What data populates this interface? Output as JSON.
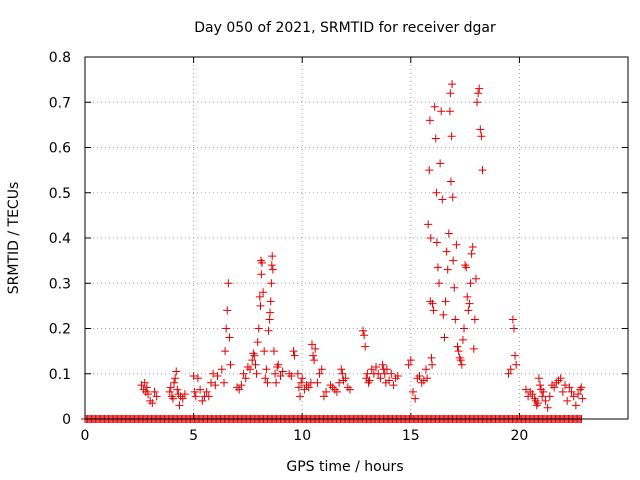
{
  "chart_data": {
    "type": "scatter",
    "title": "Day 050 of 2021, SRMTID for receiver dgar",
    "xlabel": "GPS time / hours",
    "ylabel": "SRMTID / TECUs",
    "xlim": [
      0,
      25
    ],
    "ylim": [
      0,
      0.8
    ],
    "grid": true,
    "xticks": [
      0,
      5,
      10,
      15,
      20
    ],
    "xtick_labels": [
      "0",
      "5",
      "10",
      "15",
      "20"
    ],
    "yticks": [
      0,
      0.1,
      0.2,
      0.3,
      0.4,
      0.5,
      0.6,
      0.7,
      0.8
    ],
    "ytick_labels": [
      "0",
      "0.1",
      "0.2",
      "0.3",
      "0.4",
      "0.5",
      "0.6",
      "0.7",
      "0.8"
    ],
    "marker": "+",
    "series": [
      {
        "name": "dgar",
        "color": "#e00000",
        "points": [
          [
            2.6,
            0.075
          ],
          [
            2.7,
            0.065
          ],
          [
            2.75,
            0.08
          ],
          [
            2.8,
            0.06
          ],
          [
            2.85,
            0.07
          ],
          [
            2.9,
            0.055
          ],
          [
            3.0,
            0.04
          ],
          [
            3.1,
            0.035
          ],
          [
            3.2,
            0.06
          ],
          [
            3.3,
            0.05
          ],
          [
            3.9,
            0.06
          ],
          [
            3.95,
            0.07
          ],
          [
            4.0,
            0.05
          ],
          [
            4.05,
            0.045
          ],
          [
            4.1,
            0.08
          ],
          [
            4.15,
            0.09
          ],
          [
            4.2,
            0.105
          ],
          [
            4.25,
            0.065
          ],
          [
            4.3,
            0.055
          ],
          [
            4.35,
            0.03
          ],
          [
            4.4,
            0.05
          ],
          [
            4.5,
            0.045
          ],
          [
            4.6,
            0.055
          ],
          [
            5.0,
            0.095
          ],
          [
            5.05,
            0.06
          ],
          [
            5.1,
            0.05
          ],
          [
            5.2,
            0.09
          ],
          [
            5.3,
            0.065
          ],
          [
            5.4,
            0.04
          ],
          [
            5.5,
            0.05
          ],
          [
            5.6,
            0.06
          ],
          [
            5.7,
            0.05
          ],
          [
            5.8,
            0.08
          ],
          [
            5.9,
            0.1
          ],
          [
            6.0,
            0.075
          ],
          [
            6.1,
            0.095
          ],
          [
            6.3,
            0.11
          ],
          [
            6.4,
            0.08
          ],
          [
            6.45,
            0.15
          ],
          [
            6.5,
            0.2
          ],
          [
            6.55,
            0.24
          ],
          [
            6.6,
            0.3
          ],
          [
            6.65,
            0.18
          ],
          [
            6.7,
            0.12
          ],
          [
            7.0,
            0.07
          ],
          [
            7.1,
            0.065
          ],
          [
            7.2,
            0.075
          ],
          [
            7.3,
            0.1
          ],
          [
            7.4,
            0.09
          ],
          [
            7.5,
            0.115
          ],
          [
            7.6,
            0.11
          ],
          [
            7.7,
            0.13
          ],
          [
            7.75,
            0.145
          ],
          [
            7.8,
            0.14
          ],
          [
            7.85,
            0.12
          ],
          [
            7.9,
            0.1
          ],
          [
            7.95,
            0.17
          ],
          [
            8.0,
            0.2
          ],
          [
            8.05,
            0.27
          ],
          [
            8.08,
            0.25
          ],
          [
            8.1,
            0.35
          ],
          [
            8.12,
            0.32
          ],
          [
            8.15,
            0.345
          ],
          [
            8.2,
            0.28
          ],
          [
            8.25,
            0.15
          ],
          [
            8.3,
            0.09
          ],
          [
            8.35,
            0.11
          ],
          [
            8.4,
            0.08
          ],
          [
            8.45,
            0.195
          ],
          [
            8.5,
            0.22
          ],
          [
            8.52,
            0.235
          ],
          [
            8.55,
            0.26
          ],
          [
            8.58,
            0.3
          ],
          [
            8.6,
            0.34
          ],
          [
            8.62,
            0.36
          ],
          [
            8.65,
            0.33
          ],
          [
            8.7,
            0.15
          ],
          [
            8.75,
            0.1
          ],
          [
            8.8,
            0.08
          ],
          [
            8.85,
            0.115
          ],
          [
            8.9,
            0.12
          ],
          [
            9.0,
            0.095
          ],
          [
            9.1,
            0.105
          ],
          [
            9.4,
            0.1
          ],
          [
            9.5,
            0.095
          ],
          [
            9.6,
            0.15
          ],
          [
            9.65,
            0.14
          ],
          [
            9.8,
            0.1
          ],
          [
            9.85,
            0.07
          ],
          [
            9.9,
            0.05
          ],
          [
            9.95,
            0.08
          ],
          [
            10.0,
            0.09
          ],
          [
            10.1,
            0.065
          ],
          [
            10.2,
            0.075
          ],
          [
            10.3,
            0.07
          ],
          [
            10.4,
            0.08
          ],
          [
            10.45,
            0.165
          ],
          [
            10.5,
            0.14
          ],
          [
            10.55,
            0.13
          ],
          [
            10.6,
            0.155
          ],
          [
            10.7,
            0.08
          ],
          [
            10.8,
            0.1
          ],
          [
            10.9,
            0.11
          ],
          [
            11.0,
            0.05
          ],
          [
            11.1,
            0.06
          ],
          [
            11.3,
            0.075
          ],
          [
            11.4,
            0.07
          ],
          [
            11.5,
            0.065
          ],
          [
            11.6,
            0.06
          ],
          [
            11.7,
            0.08
          ],
          [
            11.8,
            0.11
          ],
          [
            11.85,
            0.1
          ],
          [
            11.9,
            0.085
          ],
          [
            12.0,
            0.09
          ],
          [
            12.1,
            0.07
          ],
          [
            12.2,
            0.065
          ],
          [
            12.8,
            0.195
          ],
          [
            12.85,
            0.185
          ],
          [
            12.9,
            0.16
          ],
          [
            12.95,
            0.09
          ],
          [
            13.0,
            0.1
          ],
          [
            13.05,
            0.08
          ],
          [
            13.1,
            0.085
          ],
          [
            13.2,
            0.11
          ],
          [
            13.3,
            0.1
          ],
          [
            13.4,
            0.115
          ],
          [
            13.5,
            0.1
          ],
          [
            13.6,
            0.09
          ],
          [
            13.7,
            0.12
          ],
          [
            13.75,
            0.11
          ],
          [
            13.8,
            0.1
          ],
          [
            13.85,
            0.08
          ],
          [
            13.9,
            0.11
          ],
          [
            14.0,
            0.085
          ],
          [
            14.1,
            0.1
          ],
          [
            14.2,
            0.075
          ],
          [
            14.3,
            0.09
          ],
          [
            14.4,
            0.095
          ],
          [
            14.9,
            0.12
          ],
          [
            15.0,
            0.13
          ],
          [
            15.1,
            0.06
          ],
          [
            15.2,
            0.045
          ],
          [
            15.3,
            0.09
          ],
          [
            15.4,
            0.095
          ],
          [
            15.5,
            0.08
          ],
          [
            15.6,
            0.085
          ],
          [
            15.7,
            0.11
          ],
          [
            15.75,
            0.09
          ],
          [
            15.8,
            0.43
          ],
          [
            15.85,
            0.55
          ],
          [
            15.88,
            0.66
          ],
          [
            15.9,
            0.26
          ],
          [
            15.92,
            0.4
          ],
          [
            15.95,
            0.135
          ],
          [
            15.98,
            0.12
          ],
          [
            16.0,
            0.255
          ],
          [
            16.05,
            0.24
          ],
          [
            16.1,
            0.69
          ],
          [
            16.15,
            0.62
          ],
          [
            16.18,
            0.5
          ],
          [
            16.2,
            0.39
          ],
          [
            16.25,
            0.335
          ],
          [
            16.3,
            0.3
          ],
          [
            16.35,
            0.565
          ],
          [
            16.4,
            0.68
          ],
          [
            16.45,
            0.485
          ],
          [
            16.5,
            0.23
          ],
          [
            16.55,
            0.18
          ],
          [
            16.6,
            0.26
          ],
          [
            16.65,
            0.37
          ],
          [
            16.7,
            0.33
          ],
          [
            16.75,
            0.41
          ],
          [
            16.8,
            0.68
          ],
          [
            16.82,
            0.72
          ],
          [
            16.85,
            0.525
          ],
          [
            16.88,
            0.625
          ],
          [
            16.9,
            0.74
          ],
          [
            16.93,
            0.49
          ],
          [
            16.95,
            0.35
          ],
          [
            17.0,
            0.29
          ],
          [
            17.05,
            0.22
          ],
          [
            17.1,
            0.385
          ],
          [
            17.15,
            0.16
          ],
          [
            17.2,
            0.15
          ],
          [
            17.25,
            0.135
          ],
          [
            17.3,
            0.13
          ],
          [
            17.35,
            0.12
          ],
          [
            17.4,
            0.175
          ],
          [
            17.45,
            0.2
          ],
          [
            17.5,
            0.34
          ],
          [
            17.55,
            0.335
          ],
          [
            17.6,
            0.27
          ],
          [
            17.65,
            0.24
          ],
          [
            17.7,
            0.255
          ],
          [
            17.75,
            0.3
          ],
          [
            17.8,
            0.365
          ],
          [
            17.85,
            0.38
          ],
          [
            17.9,
            0.155
          ],
          [
            17.95,
            0.22
          ],
          [
            18.0,
            0.31
          ],
          [
            18.05,
            0.7
          ],
          [
            18.1,
            0.72
          ],
          [
            18.15,
            0.73
          ],
          [
            18.2,
            0.64
          ],
          [
            18.25,
            0.625
          ],
          [
            18.3,
            0.55
          ],
          [
            19.5,
            0.1
          ],
          [
            19.6,
            0.11
          ],
          [
            19.7,
            0.22
          ],
          [
            19.75,
            0.2
          ],
          [
            19.8,
            0.14
          ],
          [
            19.85,
            0.12
          ],
          [
            20.3,
            0.065
          ],
          [
            20.4,
            0.05
          ],
          [
            20.5,
            0.06
          ],
          [
            20.6,
            0.055
          ],
          [
            20.7,
            0.045
          ],
          [
            20.75,
            0.04
          ],
          [
            20.8,
            0.03
          ],
          [
            20.85,
            0.035
          ],
          [
            20.9,
            0.09
          ],
          [
            20.95,
            0.075
          ],
          [
            21.0,
            0.065
          ],
          [
            21.05,
            0.05
          ],
          [
            21.1,
            0.06
          ],
          [
            21.2,
            0.04
          ],
          [
            21.3,
            0.025
          ],
          [
            21.4,
            0.05
          ],
          [
            21.5,
            0.075
          ],
          [
            21.6,
            0.07
          ],
          [
            21.7,
            0.08
          ],
          [
            21.8,
            0.085
          ],
          [
            21.9,
            0.09
          ],
          [
            22.0,
            0.06
          ],
          [
            22.1,
            0.075
          ],
          [
            22.2,
            0.04
          ],
          [
            22.3,
            0.07
          ],
          [
            22.4,
            0.06
          ],
          [
            22.5,
            0.05
          ],
          [
            22.6,
            0.03
          ],
          [
            22.7,
            0.055
          ],
          [
            22.8,
            0.065
          ],
          [
            22.85,
            0.07
          ],
          [
            22.9,
            0.045
          ]
        ]
      }
    ],
    "zero_band": {
      "from": 0.0,
      "to": 22.9,
      "value": 0
    }
  }
}
